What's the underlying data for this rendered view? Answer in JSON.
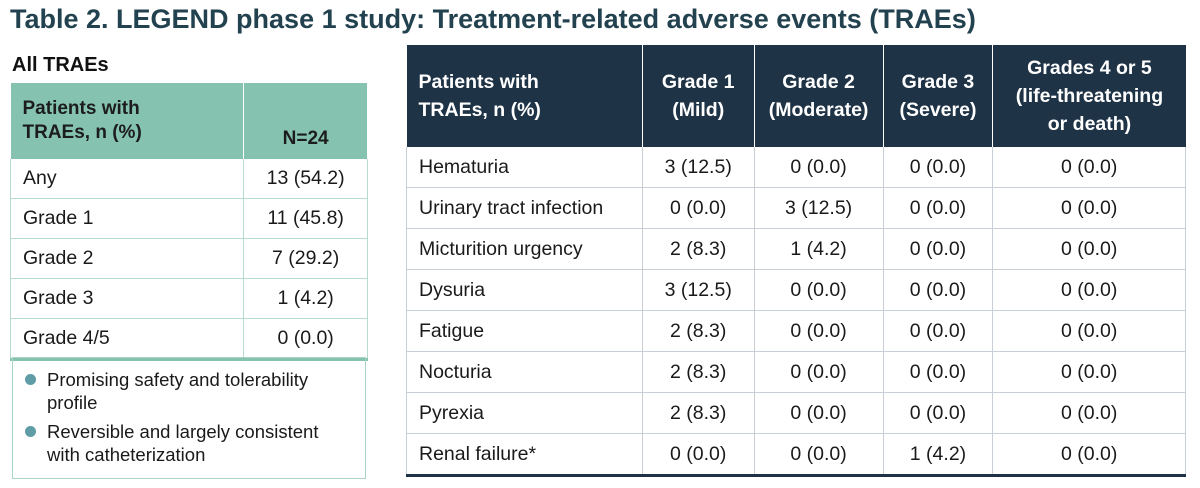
{
  "title": "Table 2. LEGEND phase 1 study: Treatment-related adverse events (TRAEs)",
  "left": {
    "subtitle": "All TRAEs",
    "header_line1": "Patients with",
    "header_line2": "TRAEs, n (%)",
    "header_n": "N=24",
    "rows": [
      {
        "label": "Any",
        "value": "13 (54.2)"
      },
      {
        "label": "Grade 1",
        "value": "11 (45.8)"
      },
      {
        "label": "Grade 2",
        "value": "7 (29.2)"
      },
      {
        "label": "Grade 3",
        "value": "1 (4.2)"
      },
      {
        "label": "Grade 4/5",
        "value": "0 (0.0)"
      }
    ]
  },
  "bullets": [
    {
      "line1": "Promising safety and tolerability",
      "line2": "profile"
    },
    {
      "line1": "Reversible and largely consistent",
      "line2": "with catheterization"
    }
  ],
  "right": {
    "headers": [
      {
        "line1": "Patients with",
        "line2": "TRAEs, n (%)",
        "line3": ""
      },
      {
        "line1": "Grade 1",
        "line2": "(Mild)",
        "line3": ""
      },
      {
        "line1": "Grade 2",
        "line2": "(Moderate)",
        "line3": ""
      },
      {
        "line1": "Grade 3",
        "line2": "(Severe)",
        "line3": ""
      },
      {
        "line1": "Grades 4 or 5",
        "line2": "(life-threatening",
        "line3": "or death)"
      }
    ],
    "rows": [
      {
        "event": "Hematuria",
        "g1": "3 (12.5)",
        "g2": "0 (0.0)",
        "g3": "0 (0.0)",
        "g45": "0 (0.0)"
      },
      {
        "event": "Urinary tract infection",
        "g1": "0 (0.0)",
        "g2": "3 (12.5)",
        "g3": "0 (0.0)",
        "g45": "0 (0.0)"
      },
      {
        "event": "Micturition urgency",
        "g1": "2 (8.3)",
        "g2": "1 (4.2)",
        "g3": "0 (0.0)",
        "g45": "0 (0.0)"
      },
      {
        "event": "Dysuria",
        "g1": "3 (12.5)",
        "g2": "0 (0.0)",
        "g3": "0 (0.0)",
        "g45": "0 (0.0)"
      },
      {
        "event": "Fatigue",
        "g1": "2 (8.3)",
        "g2": "0 (0.0)",
        "g3": "0 (0.0)",
        "g45": "0 (0.0)"
      },
      {
        "event": "Nocturia",
        "g1": "2 (8.3)",
        "g2": "0 (0.0)",
        "g3": "0 (0.0)",
        "g45": "0 (0.0)"
      },
      {
        "event": "Pyrexia",
        "g1": "2 (8.3)",
        "g2": "0 (0.0)",
        "g3": "0 (0.0)",
        "g45": "0 (0.0)"
      },
      {
        "event": "Renal failure*",
        "g1": "0 (0.0)",
        "g2": "0 (0.0)",
        "g3": "1 (4.2)",
        "g45": "0 (0.0)"
      }
    ]
  },
  "colors": {
    "title": "#23424f",
    "left_header": "#85c3b0",
    "right_header": "#1f3346",
    "bullet_dot": "#5f9ca6"
  }
}
